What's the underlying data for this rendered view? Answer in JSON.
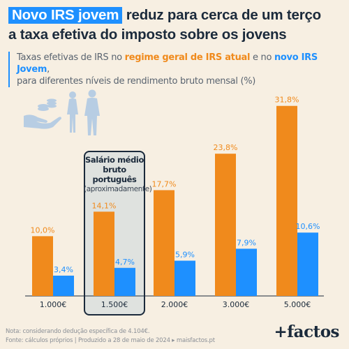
{
  "title": {
    "highlight": "Novo IRS jovem",
    "rest_line1": " reduz para cerca de um terço",
    "line2": "a taxa efetiva do imposto sobre os jovens"
  },
  "subtitle": {
    "p1": "Taxas efetivas de IRS no ",
    "orange": "regime geral de IRS atual",
    "p2": " e no ",
    "blue": "novo IRS Jovem",
    "p3": ",",
    "line2": "para diferentes níveis de rendimento bruto mensal (%)"
  },
  "salary_box": {
    "line1": "Salário médio",
    "line2": "bruto português",
    "line3": "(aproximadamente)"
  },
  "colors": {
    "orange": "#f08a1c",
    "blue": "#1e90ff",
    "dark": "#1b2a3b",
    "background": "#f7efe2"
  },
  "chart_data": {
    "type": "bar",
    "categories": [
      "1.000€",
      "1.500€",
      "2.000€",
      "3.000€",
      "5.000€"
    ],
    "series": [
      {
        "values": [
          10.0,
          14.1,
          17.7,
          23.8,
          31.8
        ],
        "labels": [
          "10,0%",
          "14,1%",
          "17,7%",
          "23,8%",
          "31,8%"
        ],
        "color": "#f08a1c"
      },
      {
        "values": [
          3.4,
          4.7,
          5.9,
          7.9,
          10.6
        ],
        "labels": [
          "3,4%",
          "4,7%",
          "5,9%",
          "7,9%",
          "10,6%"
        ],
        "color": "#1e90ff"
      }
    ],
    "ylim": [
      0,
      32
    ],
    "grid": false,
    "legend": "none"
  },
  "footer": {
    "note": "Nota: considerando dedução específica de 4.104€.",
    "source": "Fonte: cálculos próprios | Produzido a 28 de maio de 2024 ▸ maisfactos.pt",
    "logo": "+factos"
  }
}
